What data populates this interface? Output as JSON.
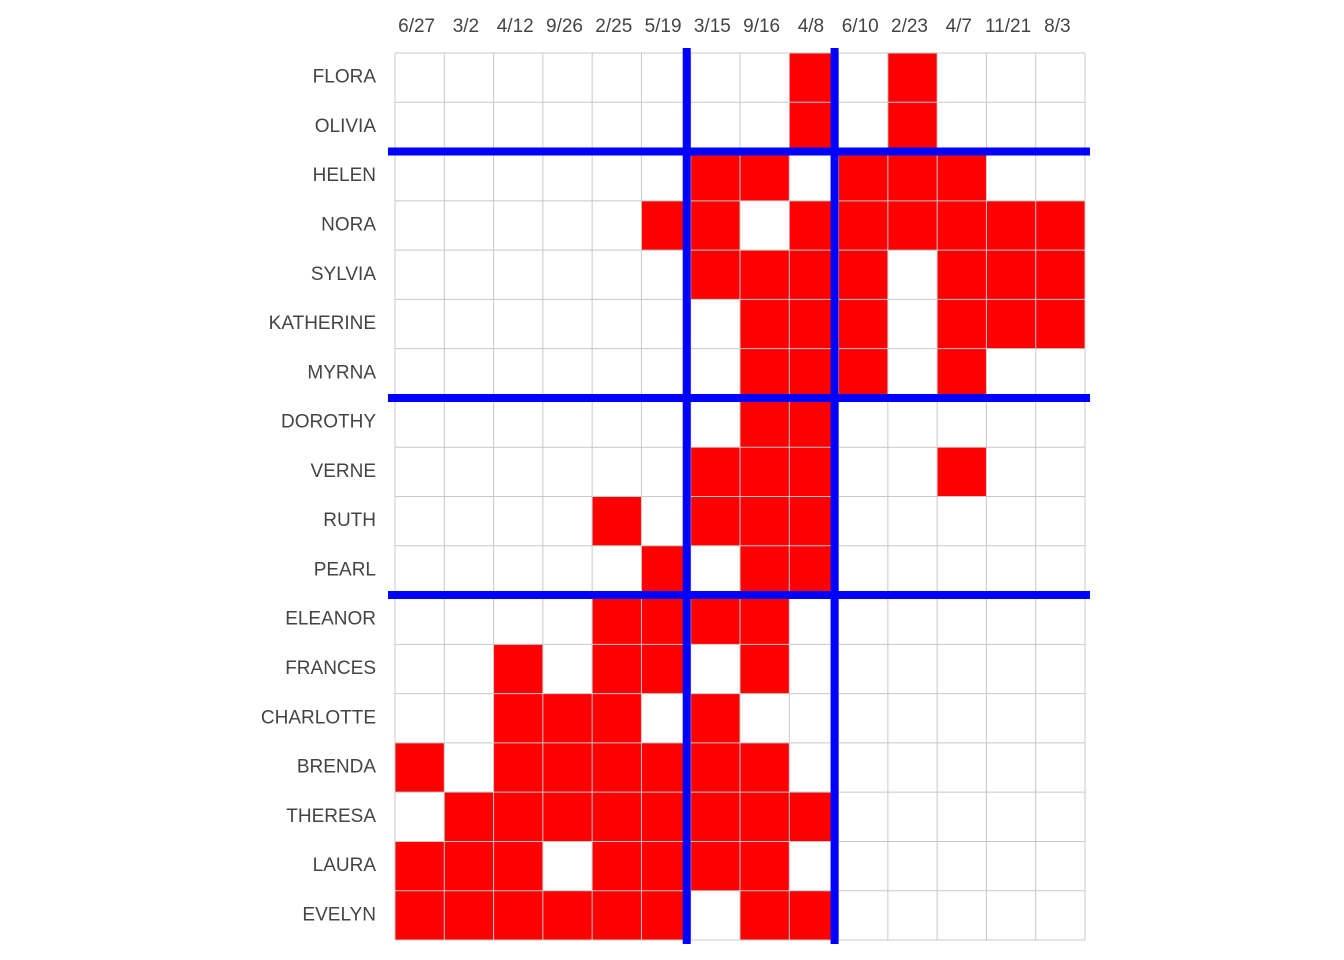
{
  "chart_data": {
    "type": "matrix",
    "x": [
      "6/27",
      "3/2",
      "4/12",
      "9/26",
      "2/25",
      "5/19",
      "3/15",
      "9/16",
      "4/8",
      "6/10",
      "2/23",
      "4/7",
      "11/21",
      "8/3"
    ],
    "y": [
      "FLORA",
      "OLIVIA",
      "HELEN",
      "NORA",
      "SYLVIA",
      "KATHERINE",
      "MYRNA",
      "DOROTHY",
      "VERNE",
      "RUTH",
      "PEARL",
      "ELEANOR",
      "FRANCES",
      "CHARLOTTE",
      "BRENDA",
      "THERESA",
      "LAURA",
      "EVELYN"
    ],
    "values": [
      [
        0,
        0,
        0,
        0,
        0,
        0,
        0,
        0,
        1,
        0,
        1,
        0,
        0,
        0
      ],
      [
        0,
        0,
        0,
        0,
        0,
        0,
        0,
        0,
        1,
        0,
        1,
        0,
        0,
        0
      ],
      [
        0,
        0,
        0,
        0,
        0,
        0,
        1,
        1,
        0,
        1,
        1,
        1,
        0,
        0
      ],
      [
        0,
        0,
        0,
        0,
        0,
        1,
        1,
        0,
        1,
        1,
        1,
        1,
        1,
        1
      ],
      [
        0,
        0,
        0,
        0,
        0,
        0,
        1,
        1,
        1,
        1,
        0,
        1,
        1,
        1
      ],
      [
        0,
        0,
        0,
        0,
        0,
        0,
        0,
        1,
        1,
        1,
        0,
        1,
        1,
        1
      ],
      [
        0,
        0,
        0,
        0,
        0,
        0,
        0,
        1,
        1,
        1,
        0,
        1,
        0,
        0
      ],
      [
        0,
        0,
        0,
        0,
        0,
        0,
        0,
        1,
        1,
        0,
        0,
        0,
        0,
        0
      ],
      [
        0,
        0,
        0,
        0,
        0,
        0,
        1,
        1,
        1,
        0,
        0,
        1,
        0,
        0
      ],
      [
        0,
        0,
        0,
        0,
        1,
        0,
        1,
        1,
        1,
        0,
        0,
        0,
        0,
        0
      ],
      [
        0,
        0,
        0,
        0,
        0,
        1,
        0,
        1,
        1,
        0,
        0,
        0,
        0,
        0
      ],
      [
        0,
        0,
        0,
        0,
        1,
        1,
        1,
        1,
        0,
        0,
        0,
        0,
        0,
        0
      ],
      [
        0,
        0,
        1,
        0,
        1,
        1,
        0,
        1,
        0,
        0,
        0,
        0,
        0,
        0
      ],
      [
        0,
        0,
        1,
        1,
        1,
        0,
        1,
        0,
        0,
        0,
        0,
        0,
        0,
        0
      ],
      [
        1,
        0,
        1,
        1,
        1,
        1,
        1,
        1,
        0,
        0,
        0,
        0,
        0,
        0
      ],
      [
        0,
        1,
        1,
        1,
        1,
        1,
        1,
        1,
        1,
        0,
        0,
        0,
        0,
        0
      ],
      [
        1,
        1,
        1,
        0,
        1,
        1,
        1,
        1,
        0,
        0,
        0,
        0,
        0,
        0
      ],
      [
        1,
        1,
        1,
        1,
        1,
        1,
        0,
        1,
        1,
        0,
        0,
        0,
        0,
        0
      ]
    ],
    "color": "#ff0000",
    "col_breaks": [
      6,
      9
    ],
    "row_breaks": [
      2,
      7,
      11
    ],
    "break_color": "#0000ff",
    "grid": true
  }
}
